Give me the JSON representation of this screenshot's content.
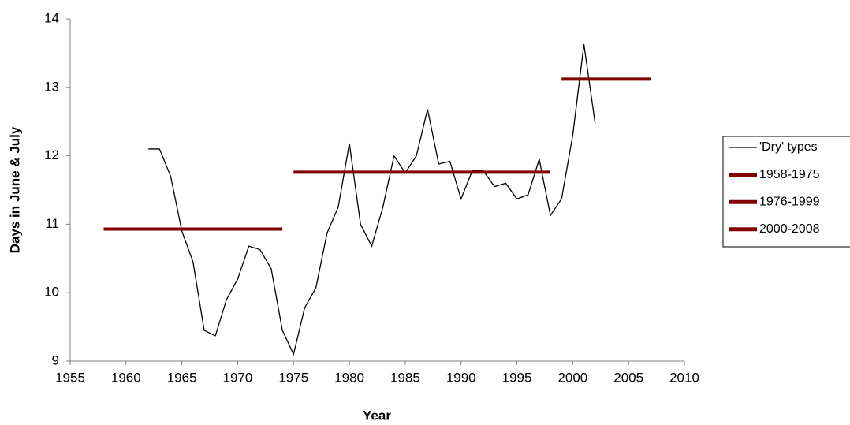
{
  "chart_data": {
    "type": "line",
    "xlabel": "Year",
    "ylabel": "Days in June & July",
    "xlim": [
      1955,
      2010
    ],
    "xticks": [
      1955,
      1960,
      1965,
      1970,
      1975,
      1980,
      1985,
      1990,
      1995,
      2000,
      2005,
      2010
    ],
    "ylim": [
      9,
      14
    ],
    "yticks": [
      9,
      10,
      11,
      12,
      13,
      14
    ],
    "grid": false,
    "legend": "right",
    "series": [
      {
        "name": "'Dry' types",
        "color": "#000000",
        "x": [
          1962,
          1963,
          1964,
          1965,
          1966,
          1967,
          1968,
          1969,
          1970,
          1971,
          1972,
          1973,
          1974,
          1975,
          1976,
          1977,
          1978,
          1979,
          1980,
          1981,
          1982,
          1983,
          1984,
          1985,
          1986,
          1987,
          1988,
          1989,
          1990,
          1991,
          1992,
          1993,
          1994,
          1995,
          1996,
          1997,
          1998,
          1999,
          2000,
          2001,
          2002
        ],
        "values": [
          12.1,
          12.1,
          11.7,
          10.9,
          10.45,
          9.45,
          9.37,
          9.9,
          10.2,
          10.68,
          10.63,
          10.35,
          9.45,
          9.1,
          9.78,
          10.07,
          10.87,
          11.25,
          12.18,
          11.0,
          10.68,
          11.25,
          12.0,
          11.75,
          12.0,
          12.68,
          11.88,
          11.92,
          11.37,
          11.78,
          11.78,
          11.55,
          11.6,
          11.37,
          11.43,
          11.95,
          11.13,
          11.37,
          12.3,
          13.63,
          12.48
        ]
      },
      {
        "name": "1958-1975",
        "color": "#800000",
        "x": [
          1958,
          1974
        ],
        "values": [
          10.93,
          10.93
        ]
      },
      {
        "name": "1976-1999",
        "color": "#800000",
        "x": [
          1975,
          1998
        ],
        "values": [
          11.76,
          11.76
        ]
      },
      {
        "name": "2000-2008",
        "color": "#800000",
        "x": [
          1999,
          2007
        ],
        "values": [
          13.12,
          13.12
        ]
      }
    ]
  }
}
